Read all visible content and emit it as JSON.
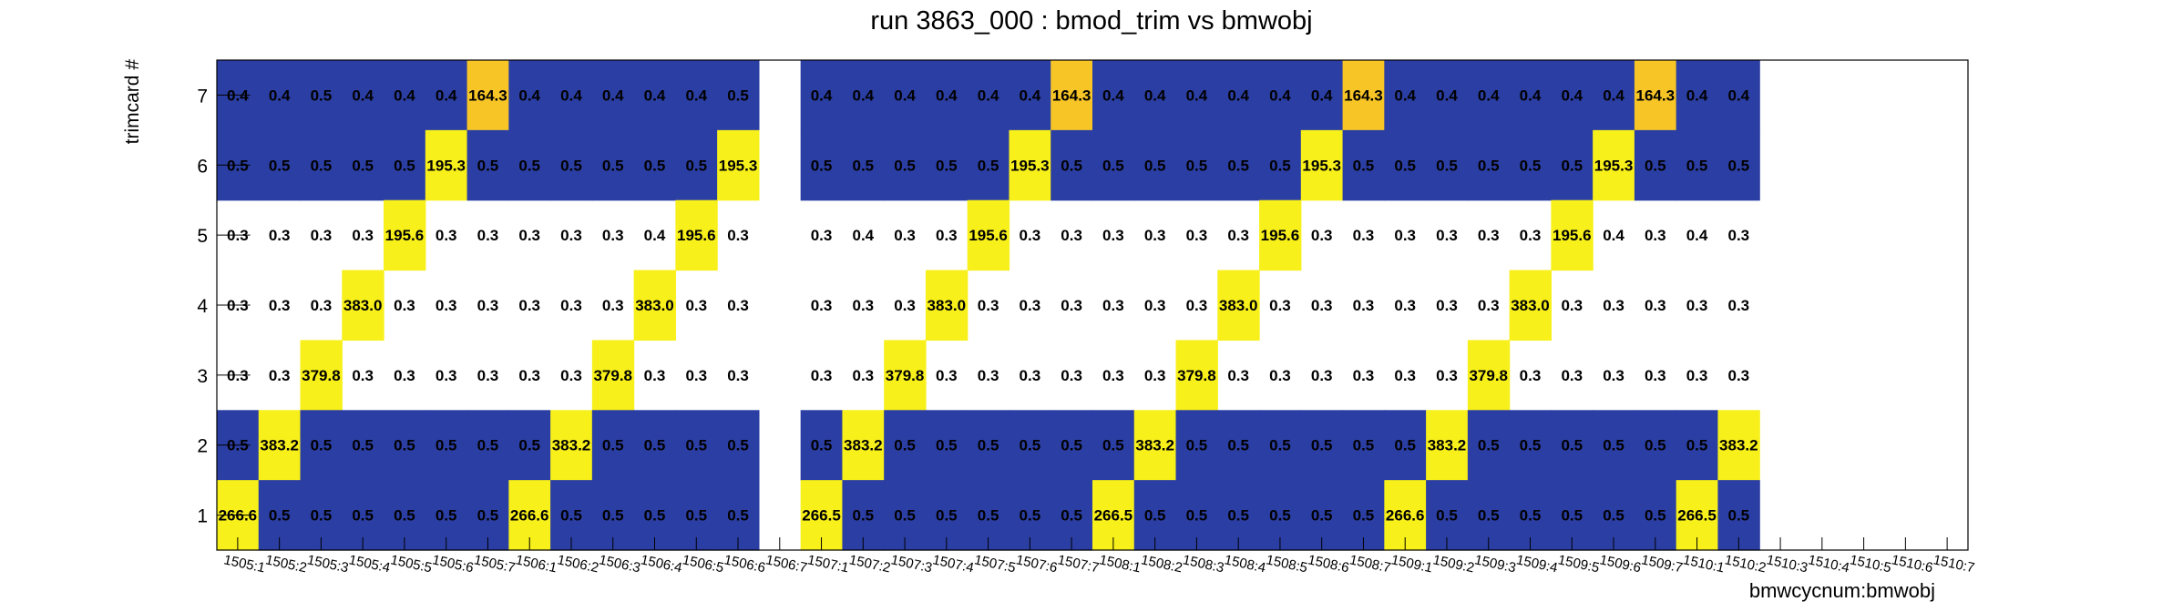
{
  "chart_data": {
    "type": "heatmap",
    "title": "run 3863_000 : bmod_trim vs bmwobj",
    "xlabel": "bmwcycnum:bmwobj",
    "ylabel": "trimcard #",
    "x": [
      "1505:1",
      "1505:2",
      "1505:3",
      "1505:4",
      "1505:5",
      "1505:6",
      "1505:7",
      "1506:1",
      "1506:2",
      "1506:3",
      "1506:4",
      "1506:5",
      "1506:6",
      "1506:7",
      "1507:1",
      "1507:2",
      "1507:3",
      "1507:4",
      "1507:5",
      "1507:6",
      "1507:7",
      "1508:1",
      "1508:2",
      "1508:3",
      "1508:4",
      "1508:5",
      "1508:6",
      "1508:7",
      "1509:1",
      "1509:2",
      "1509:3",
      "1509:4",
      "1509:5",
      "1509:6",
      "1509:7",
      "1510:1",
      "1510:2",
      "1510:3",
      "1510:4",
      "1510:5",
      "1510:6",
      "1510:7"
    ],
    "y": [
      "1",
      "2",
      "3",
      "4",
      "5",
      "6",
      "7"
    ],
    "rows": [
      {
        "y": "7",
        "values": [
          0.4,
          0.4,
          0.5,
          0.4,
          0.4,
          0.4,
          164.3,
          0.4,
          0.4,
          0.4,
          0.4,
          0.4,
          0.5,
          null,
          0.4,
          0.4,
          0.4,
          0.4,
          0.4,
          0.4,
          164.3,
          0.4,
          0.4,
          0.4,
          0.4,
          0.4,
          0.4,
          164.3,
          0.4,
          0.4,
          0.4,
          0.4,
          0.4,
          0.4,
          164.3,
          0.4,
          0.4,
          null,
          null,
          null,
          null,
          null
        ]
      },
      {
        "y": "6",
        "values": [
          0.5,
          0.5,
          0.5,
          0.5,
          0.5,
          195.3,
          0.5,
          0.5,
          0.5,
          0.5,
          0.5,
          0.5,
          195.3,
          null,
          0.5,
          0.5,
          0.5,
          0.5,
          0.5,
          195.3,
          0.5,
          0.5,
          0.5,
          0.5,
          0.5,
          0.5,
          195.3,
          0.5,
          0.5,
          0.5,
          0.5,
          0.5,
          0.5,
          195.3,
          0.5,
          0.5,
          0.5,
          null,
          null,
          null,
          null,
          null
        ]
      },
      {
        "y": "5",
        "values": [
          0.3,
          0.3,
          0.3,
          0.3,
          195.6,
          0.3,
          0.3,
          0.3,
          0.3,
          0.3,
          0.4,
          195.6,
          0.3,
          null,
          0.3,
          0.4,
          0.3,
          0.3,
          195.6,
          0.3,
          0.3,
          0.3,
          0.3,
          0.3,
          0.3,
          195.6,
          0.3,
          0.3,
          0.3,
          0.3,
          0.3,
          0.3,
          195.6,
          0.4,
          0.3,
          0.4,
          0.3,
          null,
          null,
          null,
          null,
          null
        ]
      },
      {
        "y": "4",
        "values": [
          0.3,
          0.3,
          0.3,
          383.0,
          0.3,
          0.3,
          0.3,
          0.3,
          0.3,
          0.3,
          383.0,
          0.3,
          0.3,
          null,
          0.3,
          0.3,
          0.3,
          383.0,
          0.3,
          0.3,
          0.3,
          0.3,
          0.3,
          0.3,
          383.0,
          0.3,
          0.3,
          0.3,
          0.3,
          0.3,
          0.3,
          383.0,
          0.3,
          0.3,
          0.3,
          0.3,
          0.3,
          null,
          null,
          null,
          null,
          null
        ]
      },
      {
        "y": "3",
        "values": [
          0.3,
          0.3,
          379.8,
          0.3,
          0.3,
          0.3,
          0.3,
          0.3,
          0.3,
          379.8,
          0.3,
          0.3,
          0.3,
          null,
          0.3,
          0.3,
          379.8,
          0.3,
          0.3,
          0.3,
          0.3,
          0.3,
          0.3,
          379.8,
          0.3,
          0.3,
          0.3,
          0.3,
          0.3,
          0.3,
          379.8,
          0.3,
          0.3,
          0.3,
          0.3,
          0.3,
          0.3,
          null,
          null,
          null,
          null,
          null
        ]
      },
      {
        "y": "2",
        "values": [
          0.5,
          383.2,
          0.5,
          0.5,
          0.5,
          0.5,
          0.5,
          0.5,
          383.2,
          0.5,
          0.5,
          0.5,
          0.5,
          null,
          0.5,
          383.2,
          0.5,
          0.5,
          0.5,
          0.5,
          0.5,
          0.5,
          383.2,
          0.5,
          0.5,
          0.5,
          0.5,
          0.5,
          0.5,
          383.2,
          0.5,
          0.5,
          0.5,
          0.5,
          0.5,
          0.5,
          383.2,
          null,
          null,
          null,
          null,
          null
        ]
      },
      {
        "y": "1",
        "values": [
          266.6,
          0.5,
          0.5,
          0.5,
          0.5,
          0.5,
          0.5,
          266.6,
          0.5,
          0.5,
          0.5,
          0.5,
          0.5,
          null,
          266.5,
          0.5,
          0.5,
          0.5,
          0.5,
          0.5,
          0.5,
          266.5,
          0.5,
          0.5,
          0.5,
          0.5,
          0.5,
          0.5,
          266.6,
          0.5,
          0.5,
          0.5,
          0.5,
          0.5,
          0.5,
          266.5,
          0.5,
          null,
          null,
          null,
          null,
          null
        ]
      }
    ],
    "colors": {
      "low_blue": "#2b3ea3",
      "high_yellow": "#f8f01a",
      "mid_orange": "#f7c526",
      "frame": "#000000"
    }
  }
}
